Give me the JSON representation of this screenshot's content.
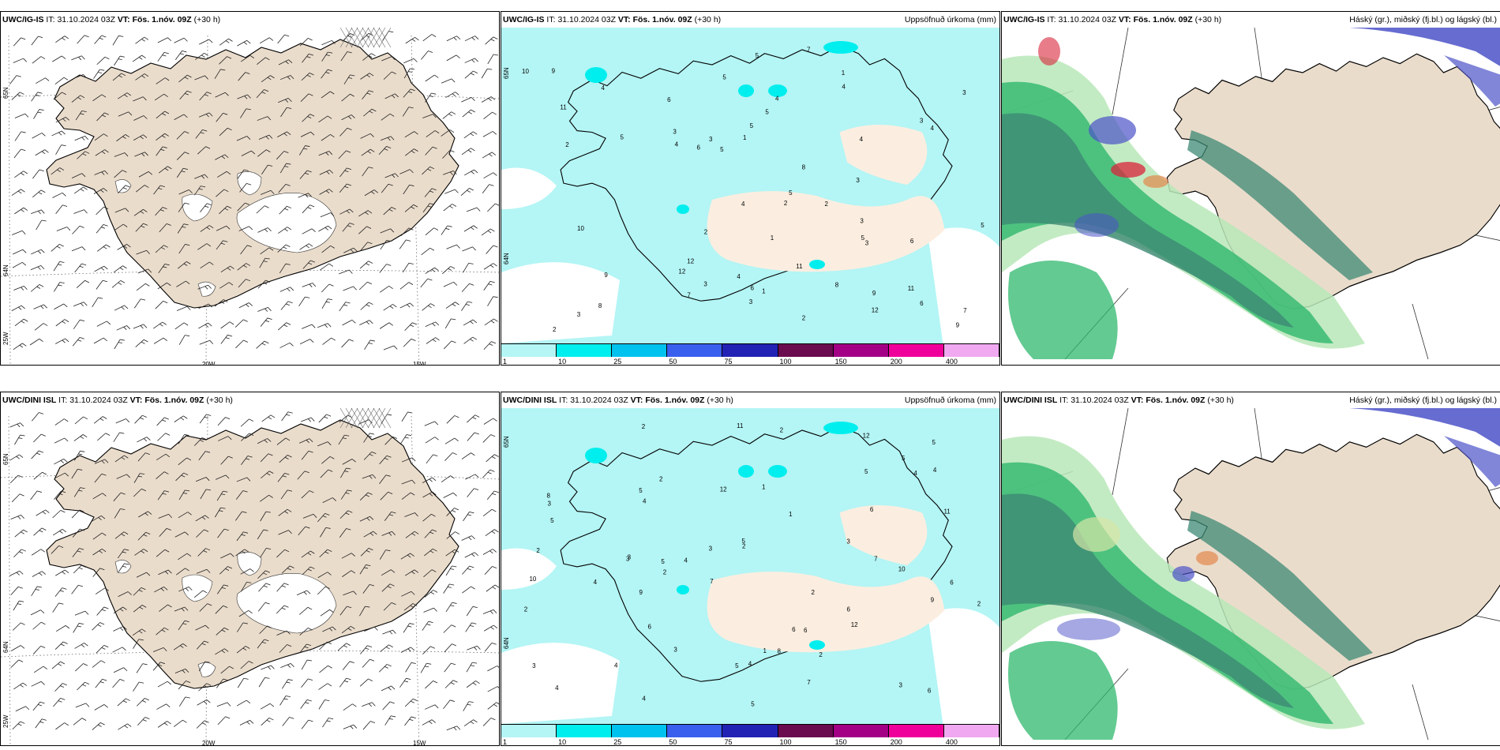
{
  "rows": [
    {
      "model": "UWC/IG-IS",
      "it_label": "IT:",
      "it_value": "31.10.2024 03Z",
      "vt_label": "VT:",
      "vt_value": "Fös. 1.nóv. 09Z",
      "lead": "(+30 h)"
    },
    {
      "model": "UWC/DINI ISL",
      "it_label": "IT:",
      "it_value": "31.10.2024 03Z",
      "vt_label": "VT:",
      "vt_value": "Fös. 1.nóv. 09Z",
      "lead": "(+30 h)"
    }
  ],
  "precip_title": "Uppsöfnuð úrkoma (mm)",
  "cloud_title": "Háský (gr.), miðský (fj.bl.) og lágský (bl.)",
  "lon_labels": [
    "20W",
    "15W"
  ],
  "lat_labels": [
    "65N",
    "64N",
    "25W"
  ],
  "precip_lat_labels": [
    "65N",
    "64N"
  ],
  "colorbar": {
    "ticks": [
      "1",
      "10",
      "25",
      "50",
      "75",
      "100",
      "150",
      "200",
      "400"
    ],
    "colors": [
      "#b4f5f5",
      "#00eeee",
      "#00c2ee",
      "#3a5fee",
      "#2222b5",
      "#6a0a4f",
      "#a30086",
      "#f0009a",
      "#f0a8f0"
    ]
  },
  "colors": {
    "land": "#eadccb",
    "sea": "#ffffff",
    "precip_light": "#b4f5f5",
    "precip_mid": "#00eeee",
    "cloud_low_dark": "#3d8a74",
    "cloud_low": "#2fb86e",
    "cloud_mid_light": "#b9e7b8",
    "cloud_high_blue": "#4b52c8",
    "cloud_high_red": "#d9243a"
  },
  "precip_numbers": [
    [
      "3",
      "3",
      "3",
      "6",
      "5",
      "5",
      "4",
      "5",
      "9",
      "10",
      "4"
    ],
    [
      "2",
      "6",
      "5",
      "4",
      "4",
      "7",
      "10",
      "11",
      "12",
      "12",
      "8"
    ],
    [
      "3",
      "2",
      "5",
      "8",
      "3",
      "2",
      "11",
      "4",
      "6",
      "6",
      "9"
    ],
    [
      "4",
      "2",
      "2",
      "1",
      "3",
      "5",
      "4",
      "1",
      "3",
      "2",
      "7"
    ]
  ]
}
